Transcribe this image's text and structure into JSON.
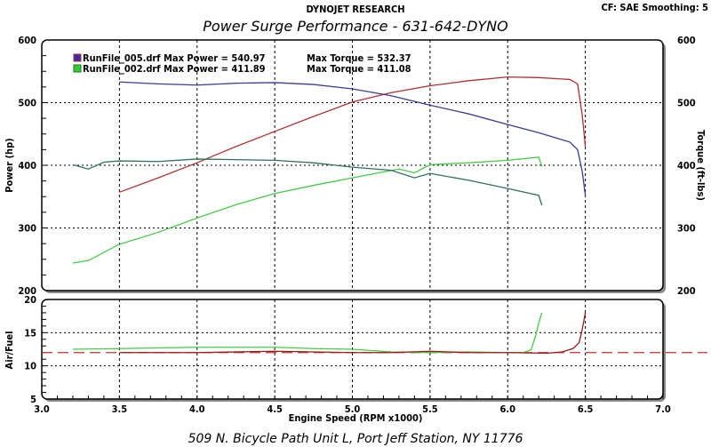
{
  "header": {
    "company": "DYNOJET RESEARCH",
    "title": "Power Surge Performance - 631-642-DYNO",
    "settings": "CF: SAE  Smoothing: 5",
    "footer": "509 N. Bicycle Path Unit L, Port Jeff Station, NY 11776"
  },
  "chart_data": [
    {
      "type": "line",
      "title": "Power Surge Performance - 631-642-DYNO",
      "xlabel": "Engine Speed (RPM x1000)",
      "ylabel": "Power (hp)",
      "y2label": "Torque (ft-lbs)",
      "xlim": [
        3.0,
        7.0
      ],
      "ylim": [
        200,
        600
      ],
      "y2lim": [
        200,
        600
      ],
      "xticks": [
        "3.0",
        "3.5",
        "4.0",
        "4.5",
        "5.0",
        "5.5",
        "6.0",
        "6.5",
        "7.0"
      ],
      "yticks": [
        "200",
        "300",
        "400",
        "500",
        "600"
      ],
      "grid": true,
      "legend": [
        {
          "file": "RunFile_005.drf",
          "text": "RunFile_005.drf Max Power = 540.97",
          "torque": "Max Torque = 532.37",
          "color": "#3b2aa8"
        },
        {
          "file": "RunFile_002.drf",
          "text": "RunFile_002.drf Max Power = 411.89",
          "torque": "Max Torque = 411.08",
          "color": "#33cc33"
        }
      ],
      "legend_position": "top-left",
      "series": [
        {
          "name": "RunFile_005 Power",
          "color": "#b03030",
          "x": [
            3.5,
            3.75,
            4.0,
            4.25,
            4.5,
            4.75,
            5.0,
            5.25,
            5.5,
            5.75,
            6.0,
            6.2,
            6.4,
            6.45,
            6.48,
            6.5
          ],
          "y": [
            357,
            380,
            404,
            430,
            454,
            478,
            501,
            516,
            527,
            535,
            541,
            540,
            537,
            530,
            480,
            430
          ]
        },
        {
          "name": "RunFile_005 Torque",
          "color": "#3a3a9a",
          "x": [
            3.5,
            3.75,
            4.0,
            4.25,
            4.5,
            4.75,
            5.0,
            5.25,
            5.5,
            5.75,
            6.0,
            6.2,
            6.4,
            6.45,
            6.48,
            6.5
          ],
          "y": [
            533,
            530,
            528,
            531,
            532,
            529,
            522,
            511,
            496,
            482,
            465,
            452,
            437,
            425,
            390,
            352
          ]
        },
        {
          "name": "RunFile_002 Power",
          "color": "#44cc44",
          "x": [
            3.2,
            3.3,
            3.5,
            3.75,
            4.0,
            4.25,
            4.5,
            4.75,
            5.0,
            5.15,
            5.3,
            5.4,
            5.5,
            5.75,
            6.0,
            6.2,
            6.22
          ],
          "y": [
            244,
            248,
            274,
            293,
            316,
            337,
            355,
            368,
            380,
            387,
            394,
            388,
            401,
            404,
            408,
            413,
            398
          ]
        },
        {
          "name": "RunFile_002 Torque",
          "color": "#2f6f5f",
          "x": [
            3.2,
            3.3,
            3.4,
            3.5,
            3.75,
            4.0,
            4.25,
            4.5,
            4.75,
            5.0,
            5.25,
            5.4,
            5.5,
            5.75,
            6.0,
            6.2,
            6.22
          ],
          "y": [
            401,
            394,
            405,
            407,
            406,
            410,
            409,
            408,
            404,
            397,
            392,
            380,
            387,
            376,
            363,
            352,
            336
          ]
        }
      ]
    },
    {
      "type": "line",
      "ylabel": "Air/Fuel",
      "xlim": [
        3.0,
        7.0
      ],
      "ylim": [
        5,
        20
      ],
      "yticks": [
        "5",
        "10",
        "15",
        "20"
      ],
      "reference_line": 12,
      "series": [
        {
          "name": "RunFile_002 AFR",
          "color": "#44cc44",
          "x": [
            3.2,
            3.5,
            4.0,
            4.5,
            4.75,
            5.0,
            5.25,
            5.5,
            5.75,
            6.0,
            6.1,
            6.15,
            6.18,
            6.2,
            6.22
          ],
          "y": [
            12.5,
            12.6,
            12.8,
            12.8,
            12.6,
            12.5,
            12.1,
            12.0,
            12.1,
            12.0,
            12.0,
            12.4,
            14.5,
            16.5,
            18
          ]
        },
        {
          "name": "RunFile_005 AFR",
          "color": "#9a1c1c",
          "x": [
            3.5,
            4.0,
            4.5,
            5.0,
            5.25,
            5.5,
            5.75,
            6.0,
            6.25,
            6.35,
            6.42,
            6.46,
            6.48,
            6.5
          ],
          "y": [
            12.0,
            12.0,
            12.2,
            12.0,
            12.0,
            12.2,
            12.0,
            12.0,
            11.9,
            12.1,
            12.6,
            13.5,
            15.5,
            18
          ]
        }
      ]
    }
  ]
}
